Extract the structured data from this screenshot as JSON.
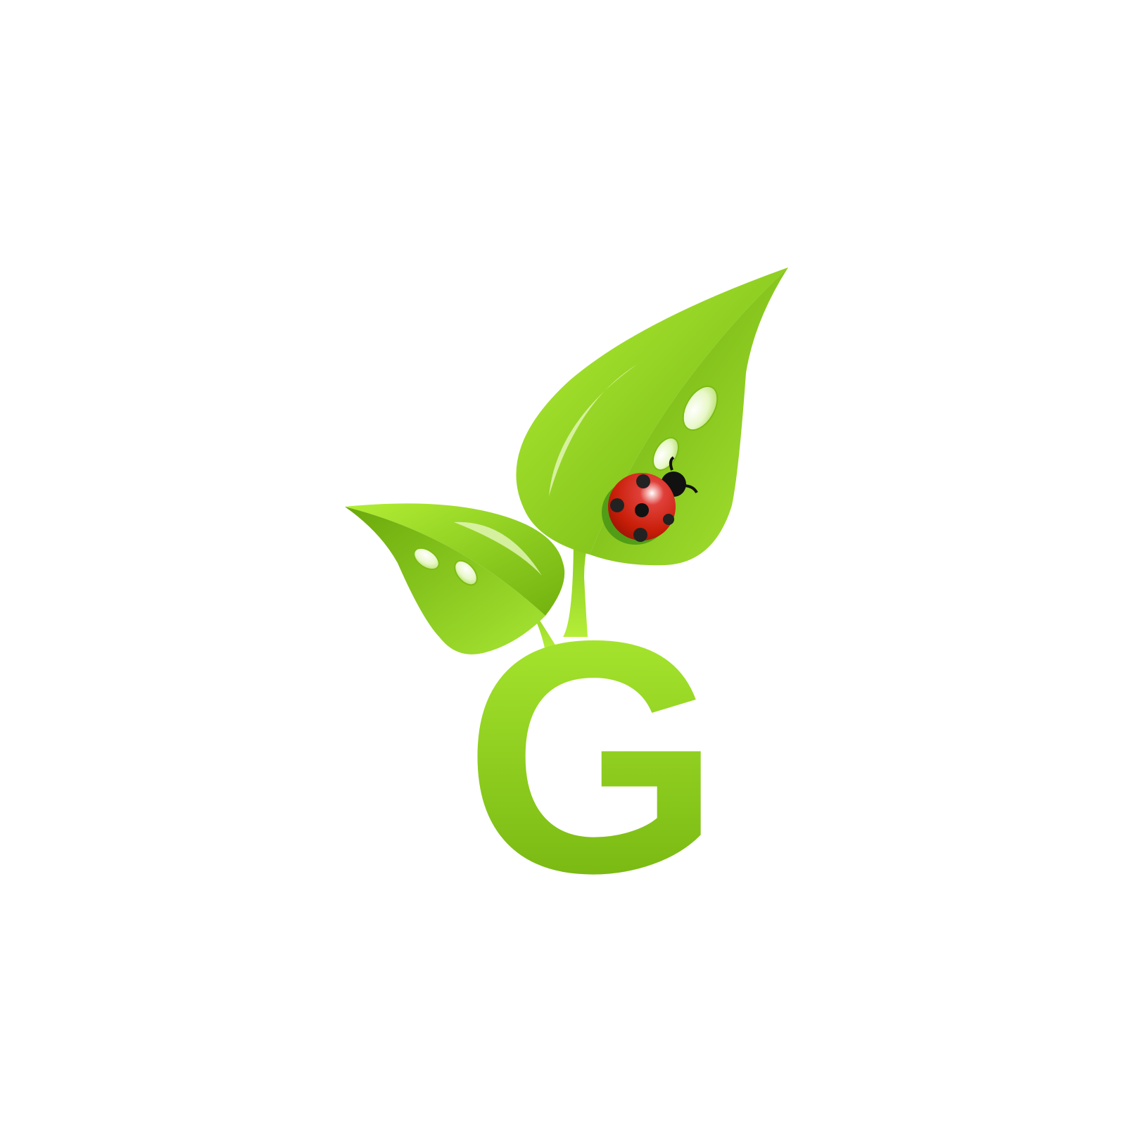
{
  "logo": {
    "letter": "G",
    "elements": [
      "leaf-icon",
      "ladybug-icon",
      "water-drop-icon"
    ],
    "colors": {
      "background": "#ffffff",
      "green_light": "#b7ee36",
      "green_mid": "#8bcc22",
      "green_dark": "#6aa80b",
      "ladybug_red": "#c81e08",
      "ladybug_black": "#111111"
    }
  }
}
